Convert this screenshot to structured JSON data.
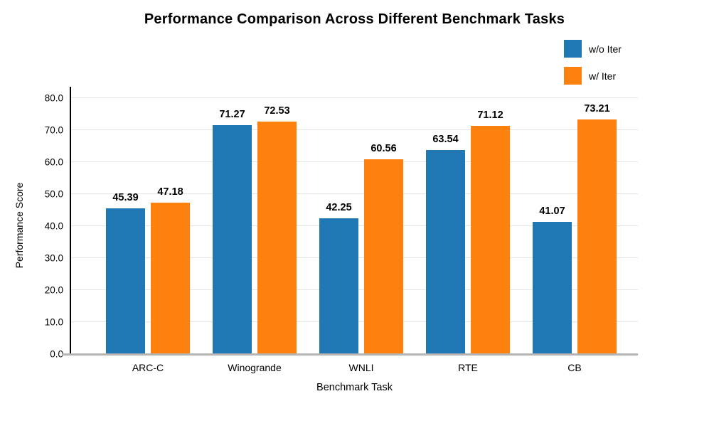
{
  "title": "Performance Comparison Across Different Benchmark Tasks",
  "colors": {
    "series_blue": "#1F77B4",
    "series_orange": "#FD810D",
    "gridline": "#e4e4e4",
    "baseline": "#b5b5b5",
    "axis": "#000000"
  },
  "chart_data": {
    "type": "bar",
    "title": "Performance Comparison Across Different Benchmark Tasks",
    "categories": [
      "ARC-C",
      "Winogrande",
      "WNLI",
      "RTE",
      "CB"
    ],
    "series": [
      {
        "name": "w/o Iter",
        "color": "#1F77B4",
        "values": [
          45.39,
          71.27,
          42.25,
          63.54,
          41.07
        ]
      },
      {
        "name": "w/ Iter",
        "color": "#FD810D",
        "values": [
          47.18,
          72.53,
          60.56,
          71.12,
          73.21
        ]
      }
    ],
    "xlabel": "Benchmark Task",
    "ylabel": "Performance Score",
    "ylim": [
      0,
      80
    ],
    "ytick_step": 10,
    "ytick_labels": [
      "0.0",
      "10.0",
      "20.0",
      "30.0",
      "40.0",
      "50.0",
      "60.0",
      "70.0",
      "80.0"
    ],
    "grid": true,
    "legend_position": "top-right",
    "value_labels": true,
    "value_label_decimals": 2
  }
}
